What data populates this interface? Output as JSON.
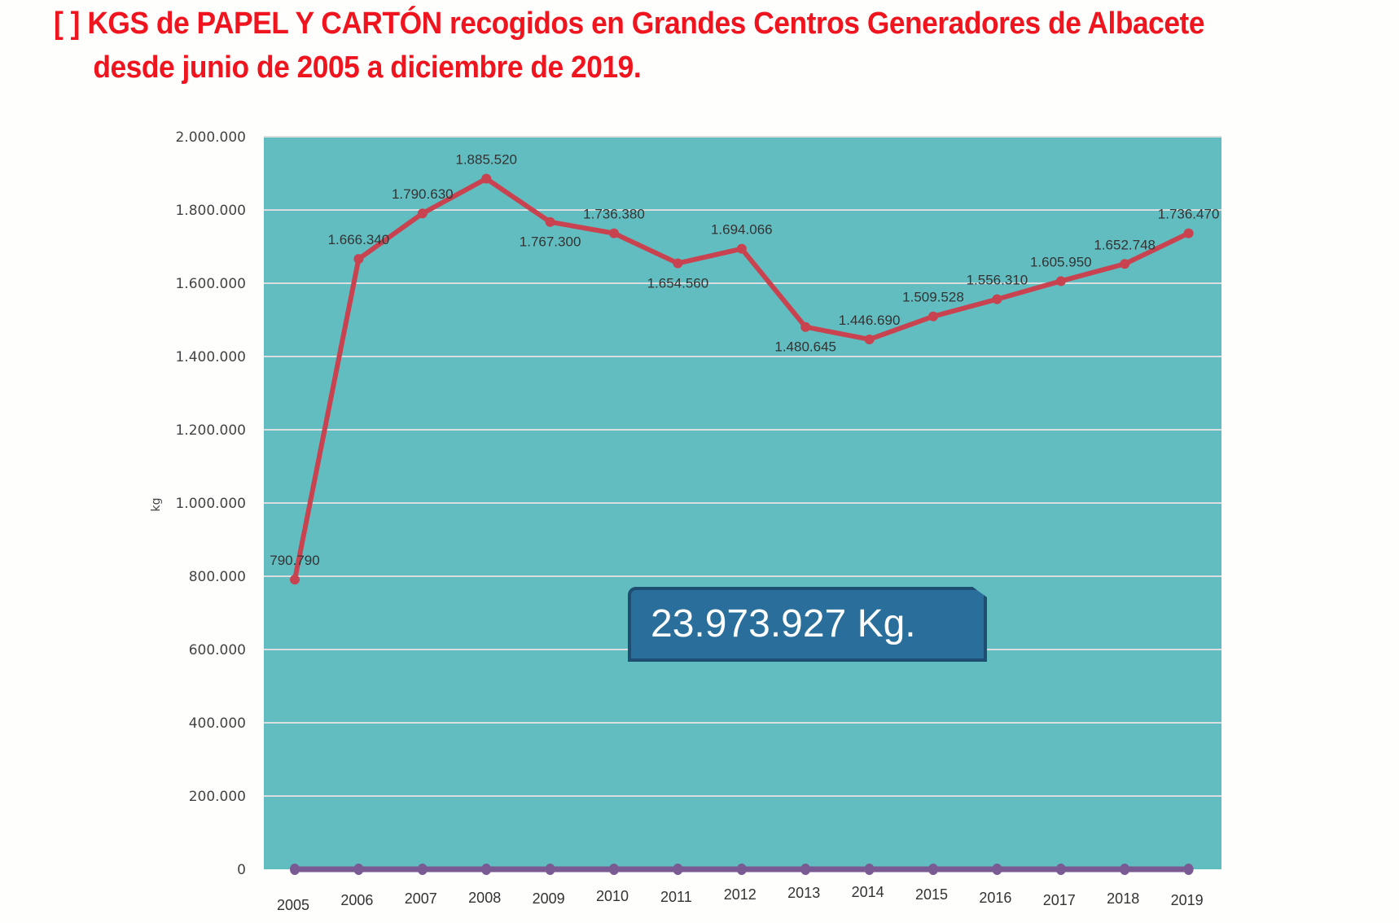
{
  "title": {
    "line1": "[  ] KGS de PAPEL Y CARTÓN recogidos en Grandes Centros Generadores de Albacete",
    "line2": "desde junio de 2005 a diciembre de 2019."
  },
  "total_label": "23.973.927 Kg.",
  "chart_data": {
    "type": "line",
    "title": "KGS de PAPEL Y CARTÓN recogidos en Grandes Centros Generadores de Albacete desde junio de 2005 a diciembre de 2019.",
    "xlabel": "",
    "ylabel": "kg",
    "ylim": [
      0,
      2000000
    ],
    "yticks": [
      "0",
      "200.000",
      "400.000",
      "600.000",
      "800.000",
      "1.000.000",
      "1.200.000",
      "1.400.000",
      "1.600.000",
      "1.800.000",
      "2.000.000"
    ],
    "categories": [
      "2005",
      "2006",
      "2007",
      "2008",
      "2009",
      "2010",
      "2011",
      "2012",
      "2013",
      "2014",
      "2015",
      "2016",
      "2017",
      "2018",
      "2019"
    ],
    "series": [
      {
        "name": "kg",
        "color": "#c8434f",
        "values": [
          790790,
          1666340,
          1790630,
          1885520,
          1767300,
          1736380,
          1654560,
          1694066,
          1480645,
          1446690,
          1509528,
          1556310,
          1605950,
          1652748,
          1736470
        ],
        "labels": [
          "790.790",
          "1.666.340",
          "1.790.630",
          "1.885.520",
          "1.767.300",
          "1.736.380",
          "1.654.560",
          "1.694.066",
          "1.480.645",
          "1.446.690",
          "1.509.528",
          "1.556.310",
          "1.605.950",
          "1.652.748",
          "1.736.470"
        ]
      },
      {
        "name": "base",
        "color": "#7a5a92",
        "values": [
          0,
          0,
          0,
          0,
          0,
          0,
          0,
          0,
          0,
          0,
          0,
          0,
          0,
          0,
          0
        ]
      }
    ],
    "grid": true,
    "colors": {
      "plot_bg": "#62bdc1",
      "grid": "#d9dede"
    }
  }
}
